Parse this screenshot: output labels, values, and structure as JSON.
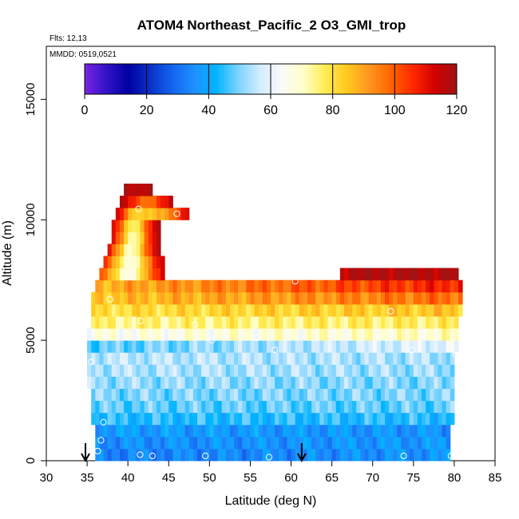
{
  "chart_data": {
    "type": "heatmap",
    "title": "ATOM4 Northeast_Pacific_2 O3_GMI_trop",
    "flights_note": "Flts: 12,13",
    "date_note": "MMDD: 0519,0521",
    "xlabel": "Latitude (deg N)",
    "ylabel": "Altitude (m)",
    "xlim": [
      30,
      85
    ],
    "ylim": [
      0,
      17200
    ],
    "xticks": [
      "30",
      "35",
      "40",
      "45",
      "50",
      "55",
      "60",
      "65",
      "70",
      "75",
      "80",
      "85"
    ],
    "yticks": [
      "0",
      "5000",
      "10000",
      "15000"
    ],
    "colorbar": {
      "min": 0,
      "max": 120,
      "ticks": [
        "0",
        "20",
        "40",
        "60",
        "80",
        "100",
        "120"
      ],
      "colors": [
        "#7a24e0",
        "#3212c8",
        "#0000a0",
        "#0a32c8",
        "#1464f0",
        "#1e90ff",
        "#00b4ff",
        "#7ad2ff",
        "#d2ecff",
        "#fafafa",
        "#ffffc8",
        "#ffec50",
        "#ffc81e",
        "#ff961e",
        "#ff6400",
        "#ff2800",
        "#d20000",
        "#a01414"
      ]
    },
    "cells": {
      "lat_step": 0.5,
      "alt_step": 500,
      "layers": [
        {
          "alt": 0,
          "lat_min": 36.0,
          "lat_max": 79.5,
          "start": 33,
          "end": 36
        },
        {
          "alt": 500,
          "lat_min": 36.0,
          "lat_max": 79.5,
          "start": 35,
          "end": 37
        },
        {
          "alt": 1000,
          "lat_min": 36.0,
          "lat_max": 79.5,
          "start": 38,
          "end": 36
        },
        {
          "alt": 1500,
          "lat_min": 35.5,
          "lat_max": 80.0,
          "start": 44,
          "end": 44
        },
        {
          "alt": 2000,
          "lat_min": 35.5,
          "lat_max": 80.0,
          "start": 48,
          "end": 48
        },
        {
          "alt": 2500,
          "lat_min": 35.5,
          "lat_max": 80.0,
          "start": 50,
          "end": 50
        },
        {
          "alt": 3000,
          "lat_min": 35.0,
          "lat_max": 80.0,
          "start": 52,
          "end": 50
        },
        {
          "alt": 3500,
          "lat_min": 35.0,
          "lat_max": 80.0,
          "start": 54,
          "end": 52
        },
        {
          "alt": 4000,
          "lat_min": 35.0,
          "lat_max": 80.0,
          "start": 55,
          "end": 53
        },
        {
          "alt": 4500,
          "lat_min": 35.0,
          "lat_max": 80.5,
          "start": 47,
          "end": 60
        },
        {
          "alt": 5000,
          "lat_min": 35.0,
          "lat_max": 80.5,
          "start": 66,
          "end": 70
        },
        {
          "alt": 5500,
          "lat_min": 35.5,
          "lat_max": 80.5,
          "start": 75,
          "end": 77
        },
        {
          "alt": 6000,
          "lat_min": 35.5,
          "lat_max": 81.0,
          "start": 80,
          "end": 85
        },
        {
          "alt": 6500,
          "lat_min": 35.5,
          "lat_max": 81.0,
          "start": 85,
          "end": 98
        },
        {
          "alt": 7000,
          "lat_min": 36.0,
          "lat_max": 81.0,
          "start": 88,
          "end": 108
        },
        {
          "alt": 7500,
          "lat_min": 66.0,
          "lat_max": 80.5,
          "start": 118,
          "end": 118
        }
      ],
      "plume": [
        {
          "alt": 7500,
          "lat_min": 36.5,
          "lat_max": 44.5,
          "profile": [
            100,
            92,
            82,
            72,
            64,
            70,
            82,
            94,
            104,
            112
          ]
        },
        {
          "alt": 8000,
          "lat_min": 37.0,
          "lat_max": 44.5,
          "profile": [
            104,
            94,
            82,
            72,
            66,
            72,
            84,
            96,
            108,
            114
          ]
        },
        {
          "alt": 8500,
          "lat_min": 37.5,
          "lat_max": 44.0,
          "profile": [
            108,
            98,
            86,
            74,
            68,
            74,
            88,
            100,
            110,
            116
          ]
        },
        {
          "alt": 9000,
          "lat_min": 38.0,
          "lat_max": 44.0,
          "profile": [
            110,
            100,
            88,
            76,
            70,
            76,
            90,
            102,
            112,
            116
          ]
        },
        {
          "alt": 9500,
          "lat_min": 38.0,
          "lat_max": 44.0,
          "profile": [
            112,
            104,
            92,
            80,
            74,
            80,
            92,
            104,
            112,
            116
          ]
        },
        {
          "alt": 10000,
          "lat_min": 38.5,
          "lat_max": 44.0,
          "profile": [
            114,
            106,
            96,
            86,
            80,
            84,
            94,
            104,
            112,
            114
          ]
        },
        {
          "alt": 10000,
          "lat_min": 41.5,
          "lat_max": 47.5,
          "profile": [
            84,
            84,
            86,
            88,
            90,
            94,
            100,
            106,
            112
          ]
        },
        {
          "alt": 10500,
          "lat_min": 39.0,
          "lat_max": 45.5,
          "profile": [
            116,
            112,
            106,
            100,
            96,
            98,
            104,
            110,
            114
          ]
        },
        {
          "alt": 11000,
          "lat_min": 39.5,
          "lat_max": 43.0,
          "profile": [
            118,
            116,
            116,
            118
          ]
        }
      ]
    },
    "flight_points": [
      [
        36.3,
        400
      ],
      [
        36.7,
        850
      ],
      [
        37.0,
        1600
      ],
      [
        35.5,
        4100
      ],
      [
        43.0,
        200
      ],
      [
        41.5,
        250
      ],
      [
        49.5,
        200
      ],
      [
        57.3,
        150
      ],
      [
        73.8,
        200
      ],
      [
        79.6,
        200
      ],
      [
        44.0,
        5300
      ],
      [
        48.2,
        5650
      ],
      [
        50.3,
        5000
      ],
      [
        55.8,
        5100
      ],
      [
        58.0,
        4600
      ],
      [
        74.8,
        4600
      ],
      [
        80.2,
        4400
      ],
      [
        37.8,
        6700
      ],
      [
        41.6,
        5800
      ],
      [
        60.5,
        7450
      ],
      [
        72.2,
        6200
      ],
      [
        41.3,
        10450
      ],
      [
        46.0,
        10250
      ]
    ],
    "arrows_lat": [
      34.8,
      61.3
    ]
  }
}
